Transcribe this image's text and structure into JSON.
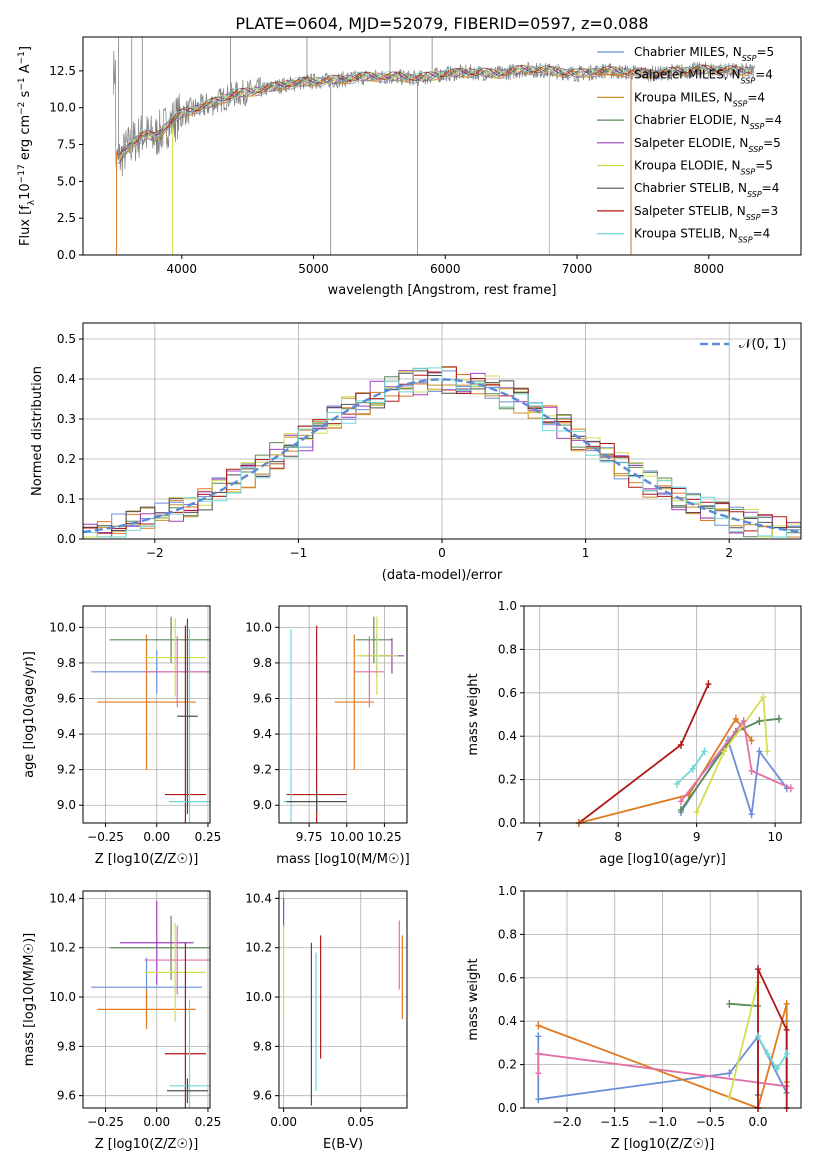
{
  "figure_title": "PLATE=0604, MJD=52079, FIBERID=0597, z=0.088",
  "model_colors": [
    "#6a8fd8",
    "#e07a20",
    "#c8902c",
    "#5a8a5a",
    "#a040c0",
    "#d4dc50",
    "#505050",
    "#b01818",
    "#70d8d8"
  ],
  "chart_data": [
    {
      "id": "spectrum",
      "type": "line",
      "title": "PLATE=0604, MJD=52079, FIBERID=0597, z=0.088",
      "xlabel": "wavelength [Angstrom, rest frame]",
      "ylabel": "Flux [f_λ 10^-17 erg cm^-2 s^-1 A^-1]",
      "xlim": [
        3250,
        8700
      ],
      "ylim": [
        0,
        14.8
      ],
      "xticks": [
        "4000",
        "5000",
        "6000",
        "7000",
        "8000"
      ],
      "yticks": [
        "0.0",
        "2.5",
        "5.0",
        "7.5",
        "10.0",
        "12.5"
      ],
      "grid": false,
      "legend_position": "upper right",
      "legend": [
        "Chabrier MILES, N_SSP=5",
        "Salpeter MILES, N_SSP=4",
        "Kroupa MILES, N_SSP=4",
        "Chabrier ELODIE, N_SSP=4",
        "Salpeter ELODIE, N_SSP=5",
        "Kroupa ELODIE, N_SSP=5",
        "Chabrier STELIB, N_SSP=4",
        "Salpeter STELIB, N_SSP=3",
        "Kroupa STELIB, N_SSP=4"
      ],
      "data_color": "#808080",
      "data_curve": [
        [
          3500,
          6.2
        ],
        [
          3600,
          7.4
        ],
        [
          3700,
          8.2
        ],
        [
          3800,
          8.0
        ],
        [
          3900,
          8.9
        ],
        [
          4000,
          9.6
        ],
        [
          4200,
          10.2
        ],
        [
          4400,
          10.9
        ],
        [
          4600,
          11.2
        ],
        [
          4800,
          11.6
        ],
        [
          5000,
          11.8
        ],
        [
          5200,
          11.9
        ],
        [
          5400,
          12.1
        ],
        [
          5600,
          12.1
        ],
        [
          5800,
          12.0
        ],
        [
          6000,
          12.3
        ],
        [
          6200,
          12.4
        ],
        [
          6400,
          12.3
        ],
        [
          6600,
          12.6
        ],
        [
          6800,
          12.5
        ],
        [
          7000,
          12.3
        ],
        [
          7200,
          12.5
        ],
        [
          7400,
          12.4
        ],
        [
          7600,
          12.3
        ],
        [
          7800,
          12.5
        ],
        [
          8000,
          12.6
        ],
        [
          8200,
          12.5
        ],
        [
          8350,
          12.5
        ]
      ],
      "spikes_down": [
        5130,
        5790,
        6790,
        7410
      ],
      "spikes_up": [
        3520,
        3620,
        3700,
        4370,
        4950,
        5580,
        5900
      ]
    },
    {
      "id": "residuals",
      "type": "histogram",
      "xlabel": "(data-model)/error",
      "ylabel": "Normed distribution",
      "xlim": [
        -2.5,
        2.5
      ],
      "ylim": [
        0,
        0.54
      ],
      "xticks": [
        "−2",
        "−1",
        "0",
        "1",
        "2"
      ],
      "yticks": [
        "0.0",
        "0.1",
        "0.2",
        "0.3",
        "0.4",
        "0.5"
      ],
      "grid": true,
      "legend_position": "upper right",
      "legend": [
        "𝒩(0, 1)"
      ],
      "gaussian_color": "#5b8bd8",
      "bin_width": 0.1
    },
    {
      "id": "age-vs-Z",
      "type": "errorbar",
      "xlabel": "Z [log10(Z/Z☉)]",
      "ylabel": "age  [log10(age/yr)]",
      "xlim": [
        -0.36,
        0.26
      ],
      "ylim": [
        8.9,
        10.12
      ],
      "xticks": [
        -0.25,
        0.0,
        0.25
      ],
      "xticklabels": [
        "−0.25",
        "0.00",
        "0.25"
      ],
      "yticks": [
        9.0,
        9.2,
        9.4,
        9.6,
        9.8,
        10.0
      ],
      "yticklabels": [
        "9.0",
        "9.2",
        "9.4",
        "9.6",
        "9.8",
        "10.0"
      ],
      "grid": true,
      "points": [
        {
          "color": "#6a8fd8",
          "x": 0.0,
          "xe": 0.32,
          "y": 9.75,
          "ye": 0.12
        },
        {
          "color": "#e07a20",
          "x": -0.05,
          "xe": 0.24,
          "y": 9.58,
          "ye": 0.38
        },
        {
          "color": "#5a8a5a",
          "x": 0.07,
          "xe": 0.3,
          "y": 9.93,
          "ye": 0.13
        },
        {
          "color": "#d4dc50",
          "x": 0.09,
          "xe": 0.15,
          "y": 9.83,
          "ye": 0.22
        },
        {
          "color": "#e070a8",
          "x": 0.1,
          "xe": 0.16,
          "y": 9.75,
          "ye": 0.2
        },
        {
          "color": "#b01818",
          "x": 0.14,
          "xe": 0.1,
          "y": 9.06,
          "ye": 0.95
        },
        {
          "color": "#70d8d8",
          "x": 0.16,
          "xe": 0.1,
          "y": 9.02,
          "ye": 0.97
        },
        {
          "color": "#505050",
          "x": 0.15,
          "xe": 0.05,
          "y": 9.5,
          "ye": 0.55
        }
      ]
    },
    {
      "id": "age-vs-mass",
      "type": "errorbar",
      "xlabel": "mass [log10(M/M☉)]",
      "ylabel": "",
      "xlim": [
        9.55,
        10.4
      ],
      "ylim": [
        8.9,
        10.12
      ],
      "xticks": [
        9.75,
        10.0,
        10.25
      ],
      "xticklabels": [
        "9.75",
        "10.00",
        "10.25"
      ],
      "yticks": [
        9.0,
        9.2,
        9.4,
        9.6,
        9.8,
        10.0
      ],
      "yticklabels": [
        "9.0",
        "9.2",
        "9.4",
        "9.6",
        "9.8",
        "10.0"
      ],
      "grid": true,
      "points": [
        {
          "color": "#6a8fd8",
          "x": 10.2,
          "xe": 0.1,
          "y": 9.84,
          "ye": 0.12
        },
        {
          "color": "#e07a20",
          "x": 10.05,
          "xe": 0.13,
          "y": 9.58,
          "ye": 0.38
        },
        {
          "color": "#5a8a5a",
          "x": 10.18,
          "xe": 0.12,
          "y": 9.93,
          "ye": 0.13
        },
        {
          "color": "#a040c0",
          "x": 10.3,
          "xe": 0.08,
          "y": 9.84,
          "ye": 0.1
        },
        {
          "color": "#d4dc50",
          "x": 10.2,
          "xe": 0.14,
          "y": 9.84,
          "ye": 0.22
        },
        {
          "color": "#e070a8",
          "x": 10.15,
          "xe": 0.1,
          "y": 9.75,
          "ye": 0.2
        },
        {
          "color": "#b01818",
          "x": 9.8,
          "xe": 0.2,
          "y": 9.06,
          "ye": 0.95
        },
        {
          "color": "#70d8d8",
          "x": 9.63,
          "xe": 0.05,
          "y": 9.02,
          "ye": 0.97
        },
        {
          "color": "#505050",
          "x": 9.8,
          "xe": 0.2,
          "y": 9.02,
          "ye": 0.06
        }
      ]
    },
    {
      "id": "mass-weight-vs-age",
      "type": "line",
      "xlabel": "age  [log10(age/yr)]",
      "ylabel": "mass weight",
      "xlim": [
        6.8,
        10.33
      ],
      "ylim": [
        0,
        1.0
      ],
      "xticks": [
        7,
        8,
        9,
        10
      ],
      "xticklabels": [
        "7",
        "8",
        "9",
        "10"
      ],
      "yticks": [
        0,
        0.2,
        0.4,
        0.6,
        0.8,
        1.0
      ],
      "yticklabels": [
        "0.0",
        "0.2",
        "0.4",
        "0.6",
        "0.8",
        "1.0"
      ],
      "grid": true,
      "series": [
        {
          "color": "#b01818",
          "x": [
            7.5,
            8.8,
            9.15
          ],
          "y": [
            0.0,
            0.36,
            0.64
          ]
        },
        {
          "color": "#e07a20",
          "x": [
            7.5,
            8.9,
            9.5,
            9.7
          ],
          "y": [
            0.0,
            0.13,
            0.48,
            0.38
          ]
        },
        {
          "color": "#6a8fd8",
          "x": [
            8.8,
            9.4,
            9.7,
            9.8,
            10.15
          ],
          "y": [
            0.05,
            0.38,
            0.04,
            0.33,
            0.16
          ]
        },
        {
          "color": "#5a8a5a",
          "x": [
            8.8,
            9.5,
            9.8,
            10.05
          ],
          "y": [
            0.06,
            0.42,
            0.47,
            0.48
          ]
        },
        {
          "color": "#d4dc50",
          "x": [
            9.0,
            9.35,
            9.85,
            9.9
          ],
          "y": [
            0.05,
            0.33,
            0.58,
            0.33
          ]
        },
        {
          "color": "#e070a8",
          "x": [
            8.8,
            9.6,
            9.7,
            10.2
          ],
          "y": [
            0.1,
            0.47,
            0.24,
            0.16
          ]
        },
        {
          "color": "#70d8d8",
          "x": [
            8.75,
            8.95,
            9.1
          ],
          "y": [
            0.18,
            0.25,
            0.33
          ]
        }
      ]
    },
    {
      "id": "mass-vs-Z",
      "type": "errorbar",
      "xlabel": "Z [log10(Z/Z☉)]",
      "ylabel": "mass [log10(M/M☉)]",
      "xlim": [
        -0.36,
        0.26
      ],
      "ylim": [
        9.55,
        10.43
      ],
      "xticks": [
        -0.25,
        0.0,
        0.25
      ],
      "xticklabels": [
        "−0.25",
        "0.00",
        "0.25"
      ],
      "yticks": [
        9.6,
        9.8,
        10.0,
        10.2,
        10.4
      ],
      "yticklabels": [
        "9.6",
        "9.8",
        "10.0",
        "10.2",
        "10.4"
      ],
      "grid": true,
      "points": [
        {
          "color": "#6a8fd8",
          "x": -0.05,
          "xe": 0.27,
          "y": 10.04,
          "ye": 0.12
        },
        {
          "color": "#e07a20",
          "x": -0.05,
          "xe": 0.24,
          "y": 9.95,
          "ye": 0.08
        },
        {
          "color": "#5a8a5a",
          "x": 0.07,
          "xe": 0.3,
          "y": 10.2,
          "ye": 0.13
        },
        {
          "color": "#a040c0",
          "x": 0.0,
          "xe": 0.18,
          "y": 10.22,
          "ye": 0.17
        },
        {
          "color": "#d4dc50",
          "x": 0.09,
          "xe": 0.15,
          "y": 10.1,
          "ye": 0.2
        },
        {
          "color": "#e070a8",
          "x": 0.1,
          "xe": 0.16,
          "y": 10.15,
          "ye": 0.14
        },
        {
          "color": "#b01818",
          "x": 0.14,
          "xe": 0.1,
          "y": 9.77,
          "ye": 0.45
        },
        {
          "color": "#70d8d8",
          "x": 0.16,
          "xe": 0.1,
          "y": 9.64,
          "ye": 0.35
        },
        {
          "color": "#505050",
          "x": 0.15,
          "xe": 0.1,
          "y": 9.62,
          "ye": 0.05
        }
      ]
    },
    {
      "id": "mass-vs-EBV",
      "type": "errorbar",
      "xlabel": "E(B-V)",
      "ylabel": "",
      "xlim": [
        -0.003,
        0.08
      ],
      "ylim": [
        9.55,
        10.43
      ],
      "xticks": [
        0.0,
        0.05
      ],
      "xticklabels": [
        "0.00",
        "0.05"
      ],
      "yticks": [
        9.6,
        9.8,
        10.0,
        10.2,
        10.4
      ],
      "yticklabels": [
        "9.6",
        "9.8",
        "10.0",
        "10.2",
        "10.4"
      ],
      "grid": true,
      "points": [
        {
          "color": "#a040c0",
          "x": 0.0,
          "xe": 0,
          "y": 10.34,
          "ye": 0.06
        },
        {
          "color": "#d4dc50",
          "x": 0.0,
          "xe": 0,
          "y": 10.1,
          "ye": 0.19
        },
        {
          "color": "#505050",
          "x": 0.018,
          "xe": 0,
          "y": 9.89,
          "ye": 0.33
        },
        {
          "color": "#70d8d8",
          "x": 0.021,
          "xe": 0,
          "y": 9.9,
          "ye": 0.28
        },
        {
          "color": "#b01818",
          "x": 0.024,
          "xe": 0,
          "y": 10.0,
          "ye": 0.25
        },
        {
          "color": "#e070a8",
          "x": 0.075,
          "xe": 0,
          "y": 10.17,
          "ye": 0.14
        },
        {
          "color": "#e07a20",
          "x": 0.077,
          "xe": 0,
          "y": 10.08,
          "ye": 0.17
        }
      ]
    },
    {
      "id": "mass-weight-vs-Z",
      "type": "line",
      "xlabel": "Z [log10(Z/Z☉)]",
      "ylabel": "mass weight",
      "xlim": [
        -2.45,
        0.45
      ],
      "ylim": [
        0,
        1.0
      ],
      "xticks": [
        -2.0,
        -1.5,
        -1.0,
        -0.5,
        0.0
      ],
      "xticklabels": [
        "−2.0",
        "−1.5",
        "−1.0",
        "−0.5",
        "0.0"
      ],
      "yticks": [
        0,
        0.2,
        0.4,
        0.6,
        0.8,
        1.0
      ],
      "yticklabels": [
        "0.0",
        "0.2",
        "0.4",
        "0.6",
        "0.8",
        "1.0"
      ],
      "grid": true,
      "series": [
        {
          "color": "#6a8fd8",
          "x": [
            -2.3,
            -2.3,
            -0.3,
            0.0,
            0.3,
            0.3
          ],
          "y": [
            0.33,
            0.04,
            0.16,
            0.33,
            0.07,
            0.4
          ]
        },
        {
          "color": "#e07a20",
          "x": [
            -2.3,
            0.0,
            0.3,
            0.3
          ],
          "y": [
            0.38,
            0.0,
            0.48,
            0.12
          ]
        },
        {
          "color": "#e070a8",
          "x": [
            -2.3,
            -2.3,
            0.3
          ],
          "y": [
            0.16,
            0.25,
            0.1
          ]
        },
        {
          "color": "#5a8a5a",
          "x": [
            -0.3,
            0.0,
            0.0
          ],
          "y": [
            0.48,
            0.47,
            0.06
          ]
        },
        {
          "color": "#d4dc50",
          "x": [
            -0.3,
            0.0,
            0.0
          ],
          "y": [
            0.05,
            0.58,
            0.33
          ]
        },
        {
          "color": "#b01818",
          "x": [
            0.0,
            0.0,
            0.3,
            0.3
          ],
          "y": [
            0.0,
            0.64,
            0.36,
            0.0
          ]
        },
        {
          "color": "#70d8d8",
          "x": [
            0.0,
            0.1,
            0.2,
            0.3
          ],
          "y": [
            0.33,
            0.25,
            0.18,
            0.25
          ]
        }
      ]
    }
  ]
}
